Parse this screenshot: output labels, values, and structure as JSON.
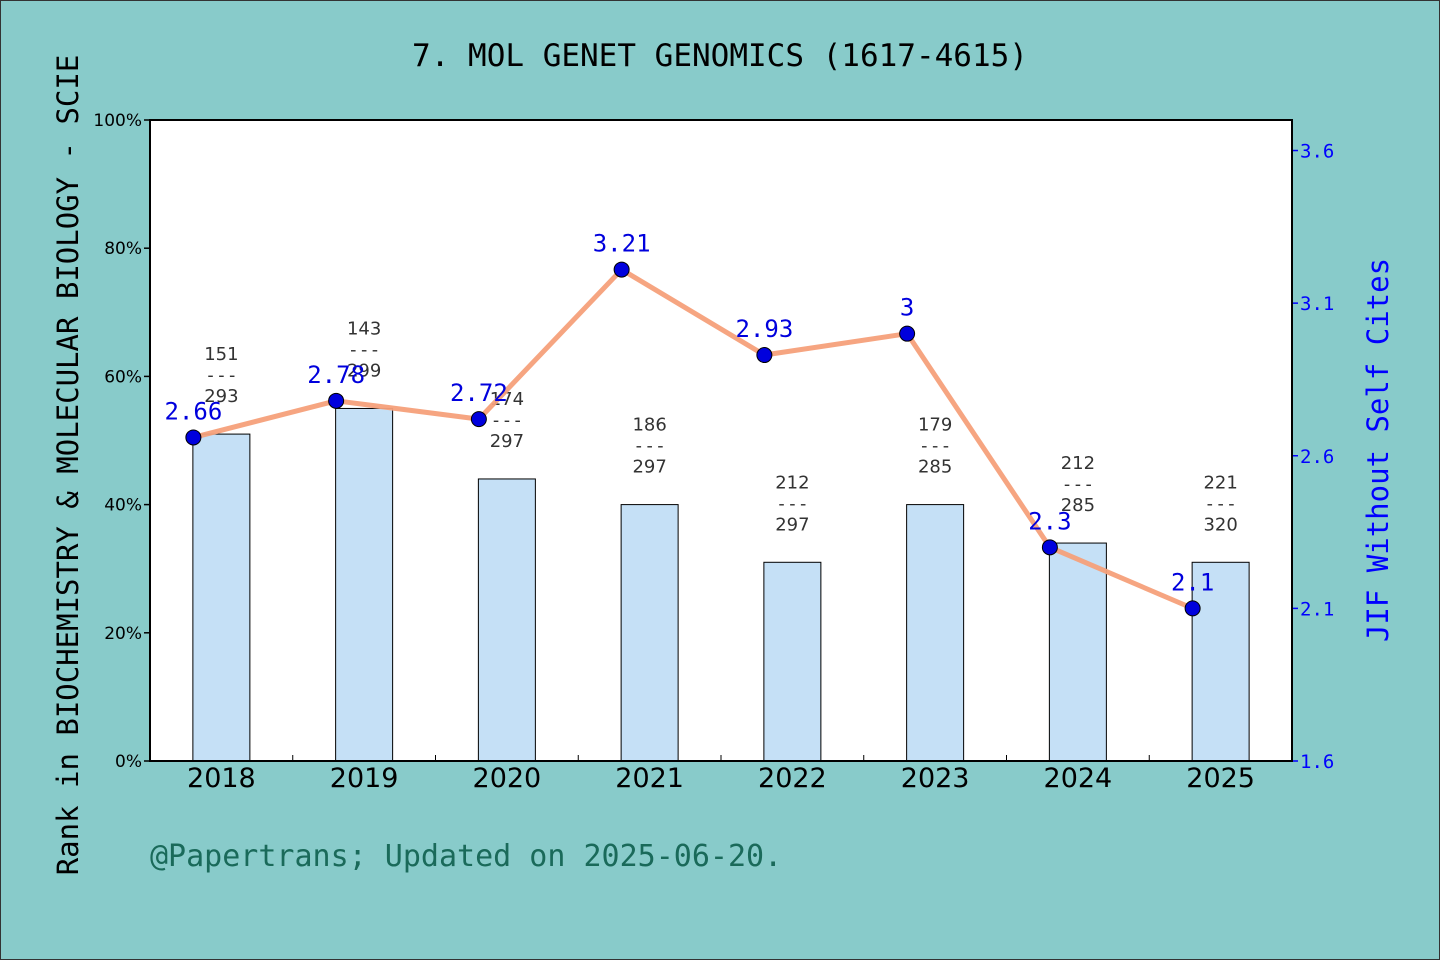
{
  "chart_data": {
    "type": "bar+line",
    "title": "7. MOL GENET GENOMICS (1617-4615)",
    "ylabel_left": "Rank in BIOCHEMISTRY & MOLECULAR BIOLOGY - SCIE",
    "ylabel_right": "JIF Without Self Cites",
    "footer": "@Papertrans; Updated on 2025-06-20.",
    "categories": [
      "2018",
      "2019",
      "2020",
      "2021",
      "2022",
      "2023",
      "2024",
      "2025"
    ],
    "left_axis": {
      "ylim": [
        0,
        100
      ],
      "ticks": [
        0,
        20,
        40,
        60,
        80,
        100
      ],
      "tick_labels": [
        "0%",
        "20%",
        "40%",
        "60%",
        "80%",
        "100%"
      ]
    },
    "right_axis": {
      "ylim": [
        1.6,
        3.7
      ],
      "ticks": [
        1.6,
        2.1,
        2.6,
        3.1,
        3.6
      ],
      "tick_labels": [
        "1.6",
        "2.1",
        "2.6",
        "3.1",
        "3.6"
      ]
    },
    "bars": {
      "values": [
        51,
        55,
        44,
        40,
        31,
        40,
        34,
        31
      ],
      "rank": [
        "151",
        "143",
        "174",
        "186",
        "212",
        "179",
        "212",
        "221"
      ],
      "total": [
        "293",
        "299",
        "297",
        "297",
        "297",
        "285",
        "285",
        "320"
      ],
      "separator": "---",
      "color": "#c5e0f6"
    },
    "line": {
      "values": [
        2.66,
        2.78,
        2.72,
        3.21,
        2.93,
        3.0,
        2.3,
        2.1
      ],
      "labels": [
        "2.66",
        "2.78",
        "2.72",
        "3.21",
        "2.93",
        "3",
        "2.3",
        "2.1"
      ],
      "color": "#f5a07a",
      "marker_color": "#0000dd"
    },
    "colors": {
      "background": "#88cbca",
      "plot_bg": "#ffffff",
      "right_axis": "#0000ff",
      "footer": "#1a6a5a"
    }
  }
}
